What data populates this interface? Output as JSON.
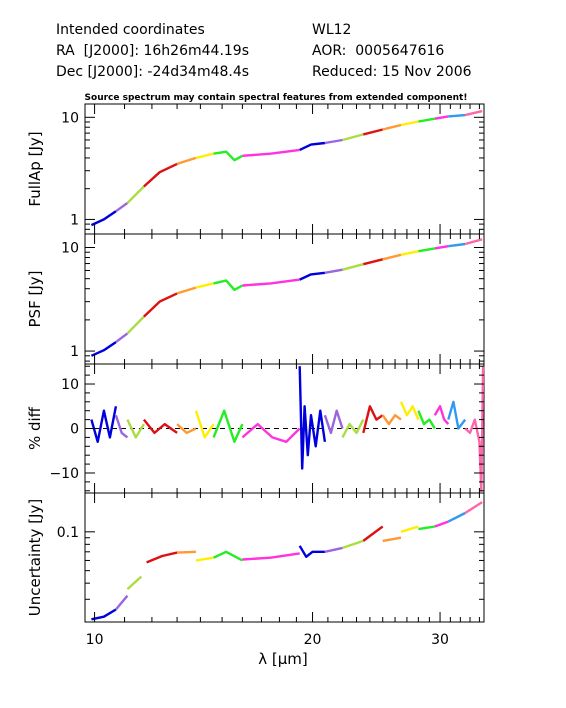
{
  "header": {
    "intended_label": "Intended coordinates",
    "ra_line": "RA  [J2000]: 16h26m44.19s",
    "dec_line": "Dec [J2000]: -24d34m48.4s",
    "target": "WL12",
    "aor_line": "AOR:  0005647616",
    "reduced_line": "Reduced: 15 Nov 2006",
    "note": "Source spectrum may contain spectral features from extended component!"
  },
  "x_axis": {
    "label": "λ [μm]",
    "scale": "log",
    "range": [
      9.7,
      34.5
    ],
    "ticks": [
      {
        "value": 10,
        "label": "10"
      },
      {
        "value": 20,
        "label": "20"
      },
      {
        "value": 30,
        "label": "30"
      }
    ]
  },
  "colors": [
    "#0000dd",
    "#9966dd",
    "#aadd44",
    "#dd1111",
    "#ff9933",
    "#ffee00",
    "#22ee22",
    "#ff33dd",
    "#3399ee",
    "#ff66aa"
  ],
  "chart_data": [
    {
      "type": "line",
      "ylabel": "FullAp [Jy]",
      "yscale": "log",
      "ylim": [
        0.72,
        13.5
      ],
      "yticks": [
        {
          "value": 1,
          "label": "1"
        },
        {
          "value": 10,
          "label": "10"
        }
      ],
      "series": [
        {
          "color_index": 0,
          "x": [
            9.9,
            10.3,
            10.7
          ],
          "y": [
            0.88,
            1.0,
            1.2
          ]
        },
        {
          "color_index": 1,
          "x": [
            10.7,
            11.1
          ],
          "y": [
            1.2,
            1.45
          ]
        },
        {
          "color_index": 2,
          "x": [
            11.1,
            11.7
          ],
          "y": [
            1.45,
            2.1
          ]
        },
        {
          "color_index": 3,
          "x": [
            11.7,
            12.3,
            13.0
          ],
          "y": [
            2.1,
            2.9,
            3.5
          ]
        },
        {
          "color_index": 4,
          "x": [
            13.0,
            13.8
          ],
          "y": [
            3.5,
            4.0
          ]
        },
        {
          "color_index": 5,
          "x": [
            13.8,
            14.6
          ],
          "y": [
            4.0,
            4.4
          ]
        },
        {
          "color_index": 6,
          "x": [
            14.6,
            15.2,
            15.6,
            16.0
          ],
          "y": [
            4.4,
            4.6,
            3.8,
            4.2
          ]
        },
        {
          "color_index": 7,
          "x": [
            16.0,
            17.5,
            19.2
          ],
          "y": [
            4.2,
            4.4,
            4.8
          ]
        },
        {
          "color_index": 0,
          "x": [
            19.2,
            19.9,
            20.8
          ],
          "y": [
            4.8,
            5.4,
            5.6
          ]
        },
        {
          "color_index": 1,
          "x": [
            20.8,
            22.0
          ],
          "y": [
            5.6,
            6.0
          ]
        },
        {
          "color_index": 2,
          "x": [
            22.0,
            23.5
          ],
          "y": [
            6.0,
            6.8
          ]
        },
        {
          "color_index": 3,
          "x": [
            23.5,
            25.0
          ],
          "y": [
            6.8,
            7.6
          ]
        },
        {
          "color_index": 4,
          "x": [
            25.0,
            26.5
          ],
          "y": [
            7.6,
            8.4
          ]
        },
        {
          "color_index": 5,
          "x": [
            26.5,
            28.0
          ],
          "y": [
            8.4,
            9.1
          ]
        },
        {
          "color_index": 6,
          "x": [
            28.0,
            29.5
          ],
          "y": [
            9.1,
            9.7
          ]
        },
        {
          "color_index": 7,
          "x": [
            29.5,
            30.8
          ],
          "y": [
            9.7,
            10.2
          ]
        },
        {
          "color_index": 8,
          "x": [
            30.8,
            32.5
          ],
          "y": [
            10.2,
            10.5
          ]
        },
        {
          "color_index": 9,
          "x": [
            32.5,
            34.3
          ],
          "y": [
            10.5,
            11.5
          ]
        }
      ]
    },
    {
      "type": "line",
      "ylabel": "PSF [Jy]",
      "yscale": "log",
      "ylim": [
        0.75,
        13.5
      ],
      "yticks": [
        {
          "value": 1,
          "label": "1"
        },
        {
          "value": 10,
          "label": "10"
        }
      ],
      "series": [
        {
          "color_index": 0,
          "x": [
            9.9,
            10.3,
            10.7
          ],
          "y": [
            0.9,
            1.02,
            1.22
          ]
        },
        {
          "color_index": 1,
          "x": [
            10.7,
            11.1
          ],
          "y": [
            1.22,
            1.48
          ]
        },
        {
          "color_index": 2,
          "x": [
            11.1,
            11.7
          ],
          "y": [
            1.48,
            2.15
          ]
        },
        {
          "color_index": 3,
          "x": [
            11.7,
            12.3,
            13.0
          ],
          "y": [
            2.15,
            3.0,
            3.6
          ]
        },
        {
          "color_index": 4,
          "x": [
            13.0,
            13.8
          ],
          "y": [
            3.6,
            4.1
          ]
        },
        {
          "color_index": 5,
          "x": [
            13.8,
            14.6
          ],
          "y": [
            4.1,
            4.5
          ]
        },
        {
          "color_index": 6,
          "x": [
            14.6,
            15.2,
            15.6,
            16.0
          ],
          "y": [
            4.5,
            4.8,
            3.9,
            4.3
          ]
        },
        {
          "color_index": 7,
          "x": [
            16.0,
            17.5,
            19.2
          ],
          "y": [
            4.3,
            4.5,
            4.9
          ]
        },
        {
          "color_index": 0,
          "x": [
            19.2,
            19.9,
            20.8
          ],
          "y": [
            4.9,
            5.5,
            5.7
          ]
        },
        {
          "color_index": 1,
          "x": [
            20.8,
            22.0
          ],
          "y": [
            5.7,
            6.1
          ]
        },
        {
          "color_index": 2,
          "x": [
            22.0,
            23.5
          ],
          "y": [
            6.1,
            6.9
          ]
        },
        {
          "color_index": 3,
          "x": [
            23.5,
            25.0
          ],
          "y": [
            6.9,
            7.7
          ]
        },
        {
          "color_index": 4,
          "x": [
            25.0,
            26.5
          ],
          "y": [
            7.7,
            8.5
          ]
        },
        {
          "color_index": 5,
          "x": [
            26.5,
            28.0
          ],
          "y": [
            8.5,
            9.2
          ]
        },
        {
          "color_index": 6,
          "x": [
            28.0,
            29.5
          ],
          "y": [
            9.2,
            9.8
          ]
        },
        {
          "color_index": 7,
          "x": [
            29.5,
            30.8
          ],
          "y": [
            9.8,
            10.3
          ]
        },
        {
          "color_index": 8,
          "x": [
            30.8,
            32.5
          ],
          "y": [
            10.3,
            10.8
          ]
        },
        {
          "color_index": 9,
          "x": [
            32.5,
            34.3
          ],
          "y": [
            10.8,
            12.0
          ]
        }
      ]
    },
    {
      "type": "line",
      "ylabel": "% diff",
      "yscale": "linear",
      "ylim": [
        -14.5,
        14.5
      ],
      "yticks": [
        {
          "value": 10,
          "label": "10"
        },
        {
          "value": 0,
          "label": "0"
        },
        {
          "value": -10,
          "label": "−10"
        }
      ],
      "zero_line": true,
      "series": [
        {
          "color_index": 0,
          "x": [
            9.9,
            10.1,
            10.3,
            10.5,
            10.7
          ],
          "y": [
            2,
            -3,
            4,
            -2,
            5
          ]
        },
        {
          "color_index": 1,
          "x": [
            10.7,
            10.9,
            11.1
          ],
          "y": [
            3,
            -1,
            -2
          ]
        },
        {
          "color_index": 2,
          "x": [
            11.1,
            11.4,
            11.7
          ],
          "y": [
            2,
            -2,
            1
          ]
        },
        {
          "color_index": 3,
          "x": [
            11.7,
            12.1,
            12.5,
            13.0
          ],
          "y": [
            2,
            -1,
            1,
            -1
          ]
        },
        {
          "color_index": 4,
          "x": [
            13.0,
            13.4,
            13.8
          ],
          "y": [
            1,
            -1,
            0
          ]
        },
        {
          "color_index": 5,
          "x": [
            13.8,
            14.2,
            14.6
          ],
          "y": [
            4,
            -2,
            1
          ]
        },
        {
          "color_index": 6,
          "x": [
            14.6,
            15.1,
            15.6,
            16.0
          ],
          "y": [
            -2,
            4,
            -3,
            1
          ]
        },
        {
          "color_index": 7,
          "x": [
            16.0,
            16.8,
            17.6,
            18.4,
            19.2
          ],
          "y": [
            -2,
            1,
            -2,
            -3,
            0
          ]
        },
        {
          "color_index": 0,
          "x": [
            19.2,
            19.35,
            19.5,
            19.7,
            19.9,
            20.2,
            20.5,
            20.8
          ],
          "y": [
            14,
            -9,
            5,
            -6,
            3,
            -4,
            4,
            -3
          ]
        },
        {
          "color_index": 1,
          "x": [
            20.8,
            21.2,
            21.6,
            22.0
          ],
          "y": [
            3,
            -1,
            4,
            0
          ]
        },
        {
          "color_index": 2,
          "x": [
            22.0,
            22.5,
            23.0,
            23.5
          ],
          "y": [
            -2,
            1,
            -1,
            2
          ]
        },
        {
          "color_index": 3,
          "x": [
            23.5,
            24.0,
            24.5,
            25.0
          ],
          "y": [
            -1,
            5,
            2,
            3
          ]
        },
        {
          "color_index": 4,
          "x": [
            25.0,
            25.5,
            26.0,
            26.5
          ],
          "y": [
            3,
            1,
            3,
            2
          ]
        },
        {
          "color_index": 5,
          "x": [
            26.5,
            27.0,
            27.5,
            28.0
          ],
          "y": [
            6,
            3,
            5,
            2
          ]
        },
        {
          "color_index": 6,
          "x": [
            28.0,
            28.5,
            29.0,
            29.5
          ],
          "y": [
            4,
            1,
            2,
            0
          ]
        },
        {
          "color_index": 7,
          "x": [
            29.5,
            30.0,
            30.4,
            30.8
          ],
          "y": [
            3,
            5,
            2,
            1
          ]
        },
        {
          "color_index": 8,
          "x": [
            30.8,
            31.3,
            31.8,
            32.5
          ],
          "y": [
            2,
            6,
            0,
            2
          ]
        },
        {
          "color_index": 9,
          "x": [
            32.5,
            33.0,
            33.5,
            34.0,
            34.2,
            34.4
          ],
          "y": [
            0,
            -1,
            2,
            -3,
            -14,
            14
          ]
        }
      ]
    },
    {
      "type": "line",
      "ylabel": "Uncertainty [Jy]",
      "yscale": "log",
      "ylim": [
        0.02,
        0.2
      ],
      "yticks": [
        {
          "value": 0.1,
          "label": "0.1"
        }
      ],
      "series": [
        {
          "color_index": 0,
          "x": [
            9.9,
            10.3,
            10.7
          ],
          "y": [
            0.021,
            0.022,
            0.025
          ]
        },
        {
          "color_index": 1,
          "x": [
            10.7,
            11.1
          ],
          "y": [
            0.025,
            0.032
          ]
        },
        {
          "color_index": 2,
          "x": [
            11.1,
            11.6
          ],
          "y": [
            0.036,
            0.045
          ]
        },
        {
          "color_index": 3,
          "x": [
            11.8,
            12.4,
            13.0
          ],
          "y": [
            0.058,
            0.065,
            0.069
          ]
        },
        {
          "color_index": 4,
          "x": [
            13.0,
            13.8
          ],
          "y": [
            0.069,
            0.07
          ]
        },
        {
          "color_index": 5,
          "x": [
            13.8,
            14.6
          ],
          "y": [
            0.06,
            0.063
          ]
        },
        {
          "color_index": 6,
          "x": [
            14.6,
            15.2,
            16.0
          ],
          "y": [
            0.063,
            0.07,
            0.06
          ]
        },
        {
          "color_index": 7,
          "x": [
            16.0,
            17.5,
            19.2
          ],
          "y": [
            0.061,
            0.063,
            0.068
          ]
        },
        {
          "color_index": 0,
          "x": [
            19.2,
            19.6,
            20.0,
            20.8
          ],
          "y": [
            0.078,
            0.064,
            0.07,
            0.07
          ]
        },
        {
          "color_index": 1,
          "x": [
            20.8,
            22.0
          ],
          "y": [
            0.07,
            0.075
          ]
        },
        {
          "color_index": 2,
          "x": [
            22.0,
            23.5
          ],
          "y": [
            0.075,
            0.085
          ]
        },
        {
          "color_index": 3,
          "x": [
            23.5,
            25.0
          ],
          "y": [
            0.085,
            0.11
          ]
        },
        {
          "color_index": 4,
          "x": [
            25.0,
            26.5
          ],
          "y": [
            0.085,
            0.09
          ]
        },
        {
          "color_index": 5,
          "x": [
            26.5,
            28.0
          ],
          "y": [
            0.1,
            0.11
          ]
        },
        {
          "color_index": 6,
          "x": [
            28.0,
            29.5
          ],
          "y": [
            0.105,
            0.11
          ]
        },
        {
          "color_index": 7,
          "x": [
            29.5,
            30.8
          ],
          "y": [
            0.11,
            0.12
          ]
        },
        {
          "color_index": 8,
          "x": [
            30.8,
            32.5
          ],
          "y": [
            0.12,
            0.14
          ]
        },
        {
          "color_index": 9,
          "x": [
            32.5,
            34.3
          ],
          "y": [
            0.14,
            0.17
          ]
        }
      ]
    }
  ]
}
